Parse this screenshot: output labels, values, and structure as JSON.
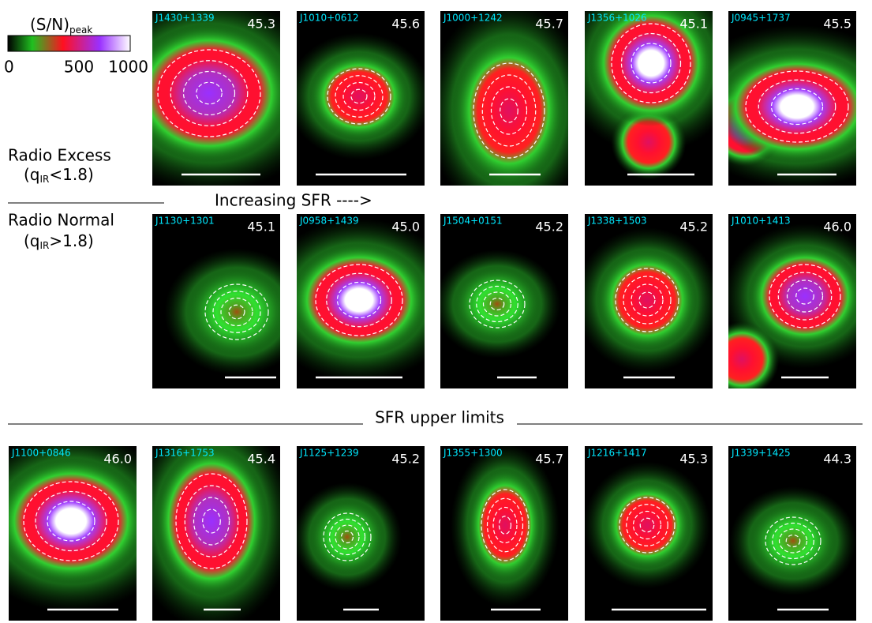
{
  "colorbar": {
    "label": "(S/N)",
    "label_sub": "peak",
    "ticks": [
      "0",
      "500",
      "1000"
    ]
  },
  "rows": [
    {
      "label": "Radio Excess",
      "sublabel": {
        "pre": "(q",
        "sub": "IR",
        "post": "<1.8)"
      },
      "panels": [
        {
          "name": "J1430+1339",
          "value": "45.3"
        },
        {
          "name": "J1010+0612",
          "value": "45.6"
        },
        {
          "name": "J1000+1242",
          "value": "45.7"
        },
        {
          "name": "J1356+1026",
          "value": "45.1"
        },
        {
          "name": "J0945+1737",
          "value": "45.5"
        }
      ]
    },
    {
      "label": "Radio Normal",
      "sublabel": {
        "pre": "(q",
        "sub": "IR",
        "post": ">1.8)"
      },
      "panels": [
        {
          "name": "J1130+1301",
          "value": "45.1"
        },
        {
          "name": "J0958+1439",
          "value": "45.0"
        },
        {
          "name": "J1504+0151",
          "value": "45.2"
        },
        {
          "name": "J1338+1503",
          "value": "45.2"
        },
        {
          "name": "J1010+1413",
          "value": "46.0"
        }
      ]
    },
    {
      "panels": [
        {
          "name": "J1100+0846",
          "value": "46.0"
        },
        {
          "name": "J1316+1753",
          "value": "45.4"
        },
        {
          "name": "J1125+1239",
          "value": "45.2"
        },
        {
          "name": "J1355+1300",
          "value": "45.7"
        },
        {
          "name": "J1216+1417",
          "value": "45.3"
        },
        {
          "name": "J1339+1425",
          "value": "44.3"
        }
      ]
    }
  ],
  "arrow_label": "Increasing SFR ---->",
  "section_label": "SFR upper limits"
}
